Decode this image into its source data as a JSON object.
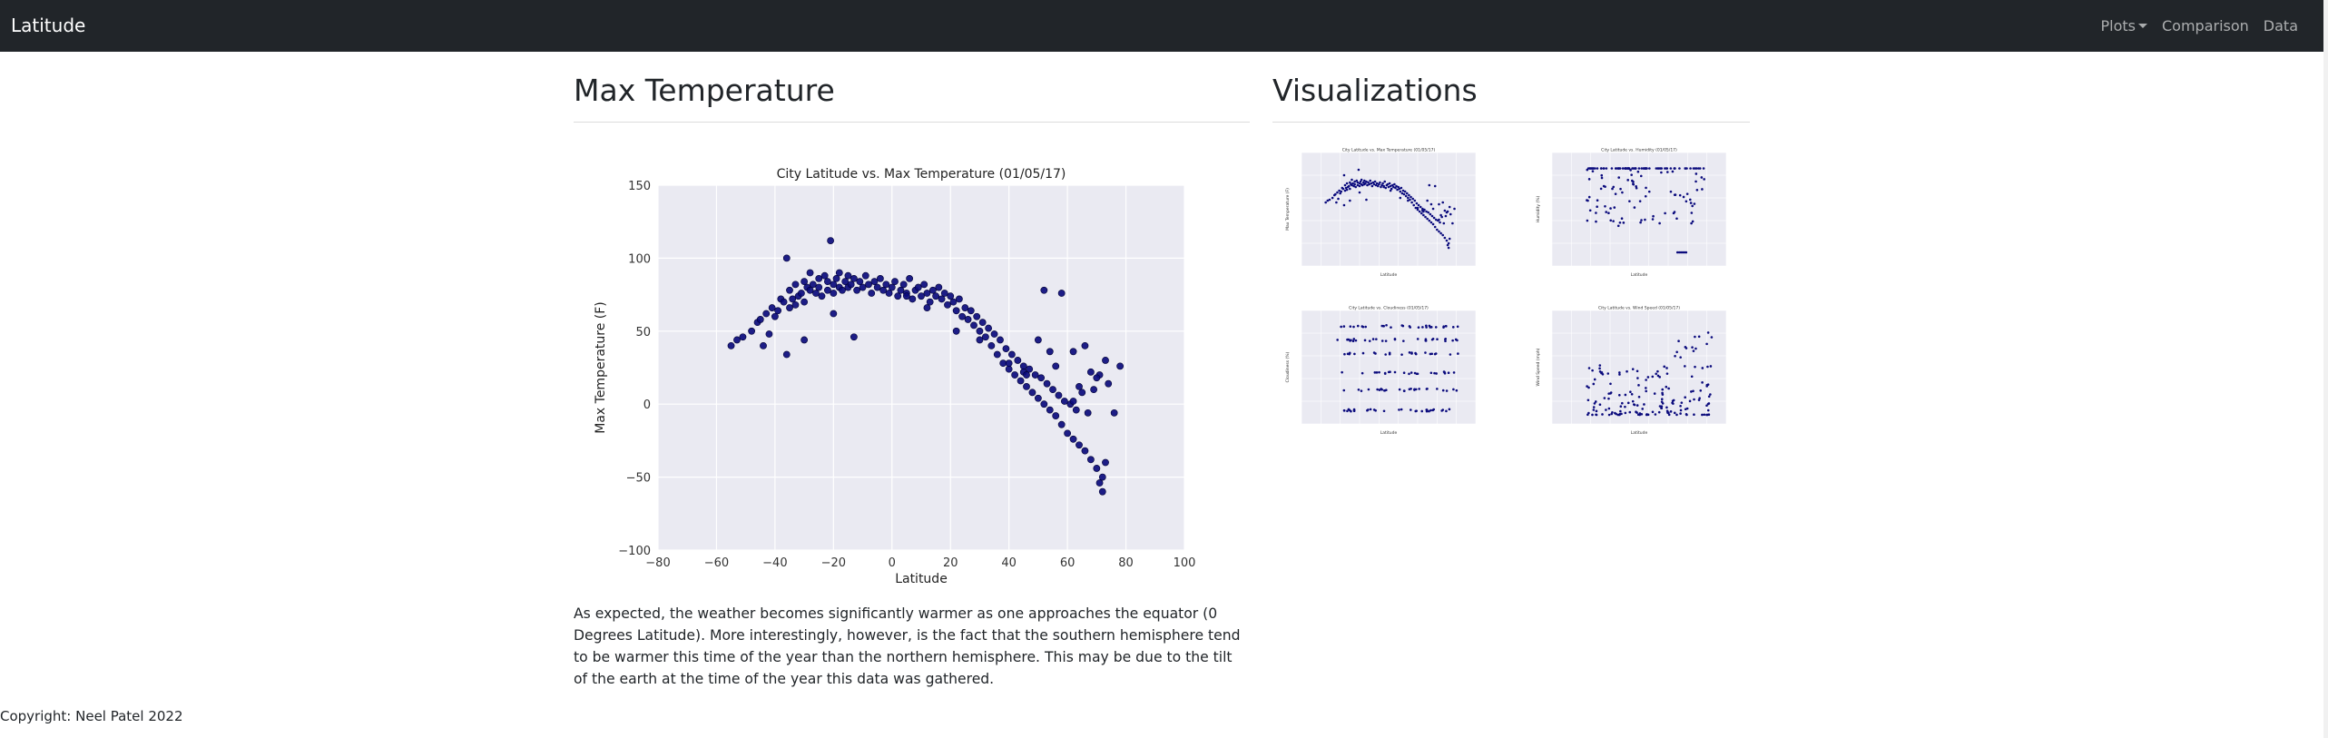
{
  "navbar": {
    "brand": "Latitude",
    "links": [
      {
        "label": "Plots",
        "has_caret": true
      },
      {
        "label": "Comparison",
        "has_caret": false
      },
      {
        "label": "Data",
        "has_caret": false
      }
    ]
  },
  "main": {
    "title": "Max Temperature",
    "paragraph": "As expected, the weather becomes significantly warmer as one approaches the equator (0 Degrees Latitude). More interestingly, however, is the fact that the southern hemisphere tend to be warmer this time of the year than the northern hemisphere. This may be due to the tilt of the earth at the time of the year this data was gathered."
  },
  "sidebar": {
    "title": "Visualizations"
  },
  "footer": {
    "copyright": "Copyright: Neel Patel 2022"
  },
  "colors": {
    "navbar_bg": "#212529",
    "plot_bg": "#eaeaf2",
    "marker": "#0b0b7d"
  },
  "chart_data": [
    {
      "type": "scatter",
      "title": "City Latitude vs. Max Temperature (01/05/17)",
      "xlabel": "Latitude",
      "ylabel": "Max Temperature (F)",
      "xlim": [
        -80,
        100
      ],
      "ylim": [
        -100,
        150
      ],
      "xticks": [
        "−80",
        "−60",
        "−40",
        "−20",
        "0",
        "20",
        "40",
        "60",
        "80",
        "100"
      ],
      "yticks": [
        "−100",
        "−50",
        "0",
        "50",
        "100",
        "150"
      ],
      "grid": true,
      "series": [
        {
          "x": [
            -55,
            -53,
            -51,
            -48,
            -46,
            -45,
            -44,
            -43,
            -42,
            -41,
            -40,
            -39,
            -38,
            -37,
            -36,
            -35,
            -35,
            -34,
            -33,
            -33,
            -32,
            -31,
            -30,
            -30,
            -29,
            -28,
            -28,
            -27,
            -26,
            -25,
            -25,
            -24,
            -23,
            -22,
            -22,
            -21,
            -20,
            -20,
            -19,
            -18,
            -18,
            -17,
            -16,
            -15,
            -15,
            -14,
            -13,
            -12,
            -11,
            -10,
            -9,
            -8,
            -7,
            -6,
            -5,
            -4,
            -3,
            -2,
            -1,
            0,
            1,
            2,
            3,
            4,
            5,
            6,
            7,
            8,
            9,
            10,
            11,
            12,
            13,
            14,
            15,
            16,
            17,
            18,
            19,
            20,
            21,
            22,
            23,
            24,
            25,
            26,
            27,
            28,
            29,
            30,
            31,
            32,
            33,
            34,
            35,
            36,
            37,
            38,
            39,
            40,
            41,
            42,
            43,
            44,
            45,
            46,
            47,
            48,
            49,
            50,
            51,
            52,
            53,
            54,
            55,
            56,
            57,
            58,
            59,
            60,
            61,
            62,
            63,
            64,
            65,
            66,
            67,
            68,
            69,
            70,
            71,
            72,
            73,
            74,
            76,
            78,
            -36,
            -30,
            -20,
            -13,
            5,
            12,
            22,
            30,
            40,
            45,
            52,
            58,
            62,
            66,
            68,
            70,
            71,
            72,
            73,
            62,
            64,
            56,
            50,
            46,
            54
          ],
          "y": [
            40,
            44,
            46,
            50,
            56,
            58,
            40,
            62,
            48,
            66,
            60,
            64,
            72,
            70,
            100,
            66,
            78,
            72,
            68,
            82,
            74,
            76,
            70,
            84,
            80,
            78,
            90,
            82,
            76,
            86,
            80,
            74,
            88,
            84,
            78,
            112,
            82,
            76,
            86,
            80,
            90,
            78,
            84,
            80,
            88,
            82,
            86,
            78,
            84,
            80,
            88,
            82,
            76,
            84,
            80,
            86,
            78,
            82,
            76,
            80,
            84,
            74,
            78,
            82,
            76,
            86,
            72,
            78,
            80,
            74,
            82,
            76,
            70,
            78,
            74,
            80,
            72,
            76,
            68,
            74,
            70,
            64,
            72,
            60,
            66,
            58,
            64,
            54,
            60,
            50,
            56,
            46,
            52,
            40,
            48,
            34,
            44,
            28,
            38,
            24,
            34,
            20,
            30,
            16,
            26,
            12,
            24,
            8,
            20,
            4,
            18,
            0,
            14,
            -4,
            10,
            -8,
            6,
            -14,
            2,
            -20,
            0,
            -24,
            -4,
            -28,
            8,
            -32,
            -6,
            -38,
            10,
            -44,
            20,
            -50,
            -40,
            14,
            -6,
            26,
            34,
            44,
            62,
            46,
            74,
            66,
            50,
            44,
            28,
            22,
            78,
            76,
            36,
            40,
            22,
            18,
            -54,
            -60,
            30,
            2,
            12,
            26,
            44,
            20,
            36
          ],
          "marker": "circle"
        }
      ]
    },
    {
      "type": "scatter",
      "title": "City Latitude vs. Max Temperature (01/05/17)",
      "xlabel": "Latitude",
      "ylabel": "Max Temperature (F)",
      "thumbnail": true
    },
    {
      "type": "scatter",
      "title": "City Latitude vs. Humidity (01/05/17)",
      "xlabel": "Latitude",
      "ylabel": "Humidity (%)",
      "thumbnail": true
    },
    {
      "type": "scatter",
      "title": "City Latitude vs. Cloudiness (01/05/17)",
      "xlabel": "Latitude",
      "ylabel": "Cloudiness (%)",
      "thumbnail": true
    },
    {
      "type": "scatter",
      "title": "City Latitude vs. Wind Speed (01/05/17)",
      "xlabel": "Latitude",
      "ylabel": "Wind Speed (mph)",
      "thumbnail": true
    }
  ]
}
